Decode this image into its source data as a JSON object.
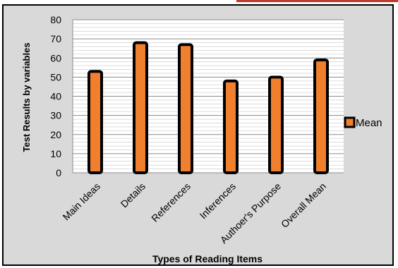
{
  "chart_data": {
    "type": "bar",
    "categories": [
      "Main Ideas",
      "Details",
      "References",
      "Inferences",
      "Authoer's Purpose",
      "Overall Mean"
    ],
    "series": [
      {
        "name": "Mean",
        "values": [
          53,
          68,
          67,
          48,
          50,
          59
        ]
      }
    ],
    "xlabel": "Types of Reading Items",
    "ylabel": "Test Results by variables",
    "ylim": [
      0,
      80
    ],
    "yticks": [
      0,
      10,
      20,
      30,
      40,
      50,
      60,
      70,
      80
    ],
    "grid": true,
    "legend_position": "right",
    "colors": {
      "bar_fill": "#f07f2e",
      "bar_edge": "#000000",
      "plot_bg": "#ffffff",
      "frame_bg": "#d9d9d9",
      "top_rule": "#c0392b"
    }
  }
}
